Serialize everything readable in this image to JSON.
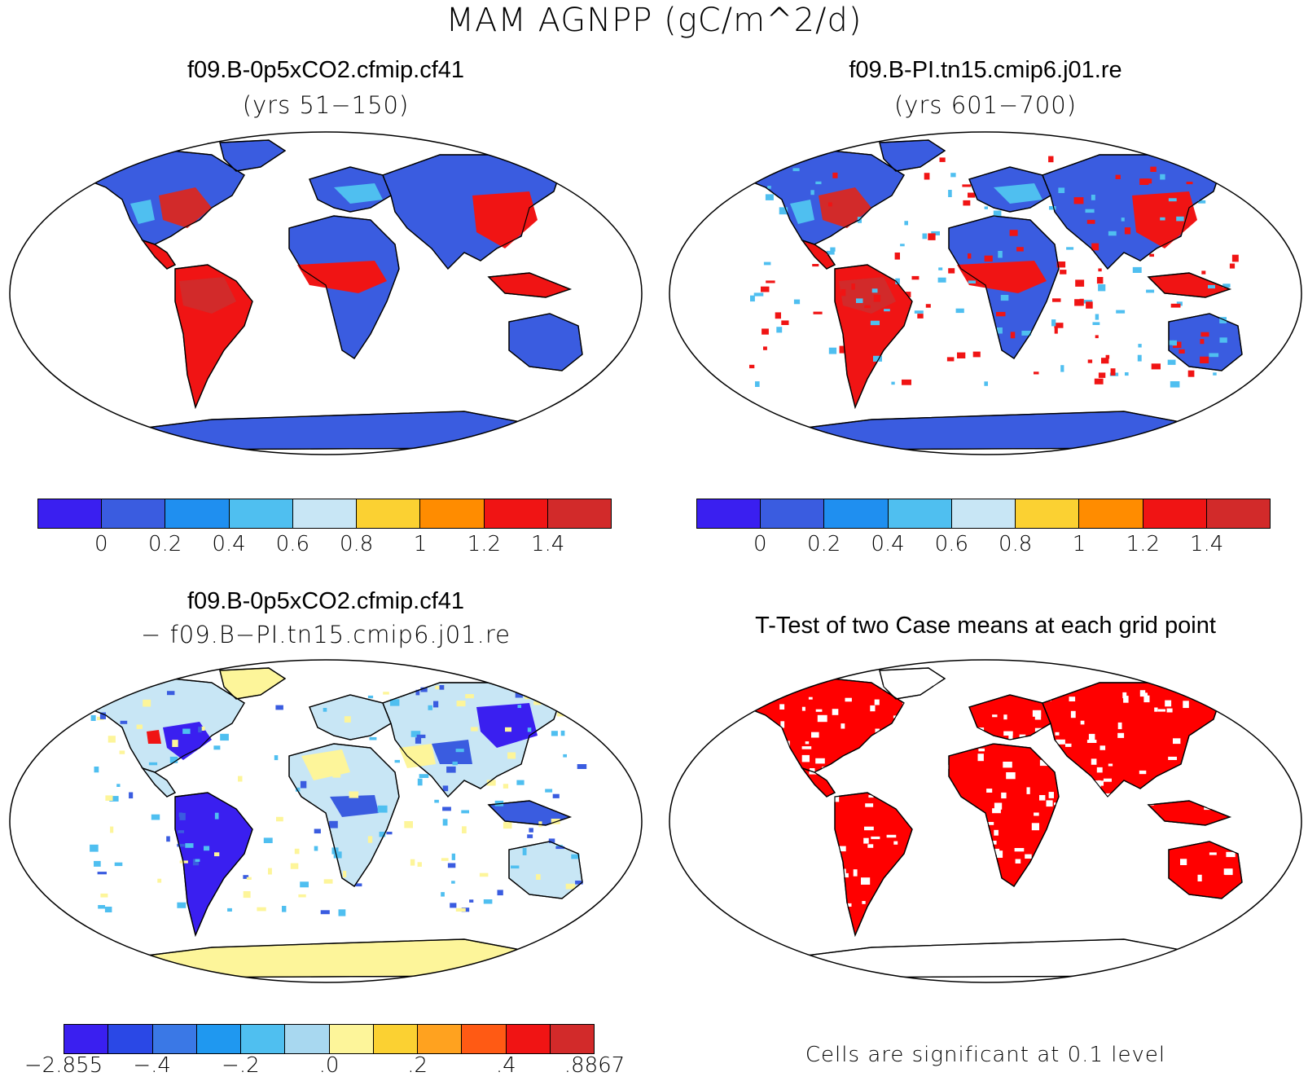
{
  "title": "MAM AGNPP (gC/m^2/d)",
  "panels": {
    "top_left": {
      "title": "f09.B-0p5xCO2.cfmip.cf41",
      "subtitle": "(yrs 51−150)"
    },
    "top_right": {
      "title": "f09.B-PI.tn15.cmip6.j01.re",
      "subtitle": "(yrs 601−700)"
    },
    "bottom_left": {
      "title": "f09.B-0p5xCO2.cfmip.cf41",
      "subtitle": "− f09.B−PI.tn15.cmip6.j01.re"
    },
    "bottom_right": {
      "title": "T-Test of two Case means at each grid point",
      "note": "Cells are significant at 0.1 level"
    }
  },
  "colorbars": {
    "absolute": {
      "colors": [
        "#3a1ff0",
        "#3a5ce0",
        "#1f8ff0",
        "#4fbff0",
        "#c8e6f5",
        "#fbd132",
        "#ff8c00",
        "#f01414",
        "#d22a2a"
      ],
      "labels": [
        "0",
        "0.2",
        "0.4",
        "0.6",
        "0.8",
        "1",
        "1.2",
        "1.4"
      ]
    },
    "difference": {
      "colors": [
        "#3a1ff0",
        "#2a48e6",
        "#3a78e6",
        "#1f98f0",
        "#4fbff0",
        "#a8d8f0",
        "#fdf59a",
        "#fbd132",
        "#ffa21f",
        "#ff5a14",
        "#f01414",
        "#d22a2a"
      ],
      "labels": [
        "−2.855",
        "−.4",
        "−.2",
        ".0",
        ".2",
        ".4",
        ".8867"
      ]
    }
  },
  "map_colors": {
    "ocean": "#ffffff",
    "outline": "#000000",
    "low": "#3a5ce0",
    "mid": "#4fbff0",
    "pale": "#c8e6f5",
    "high": "#f01414",
    "peak": "#d22a2a",
    "yellow": "#fdf59a",
    "dark_blue": "#3a1ff0",
    "significant": "#ff0000"
  }
}
